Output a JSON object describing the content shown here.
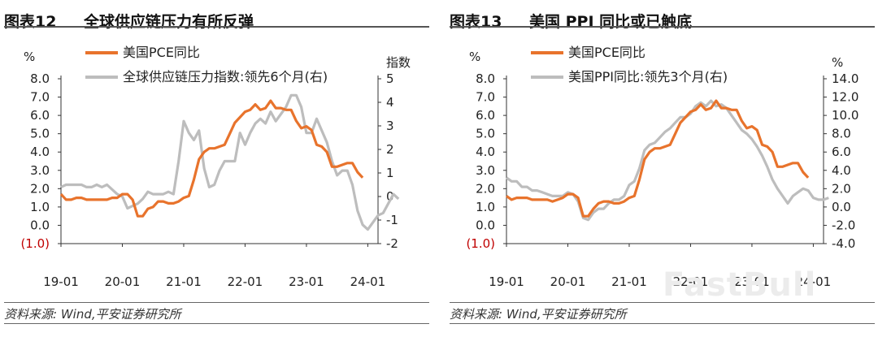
{
  "watermark": "FastBull",
  "colors": {
    "orange": "#E8732C",
    "gray": "#BDBDBD",
    "negative": "#C00000",
    "axis": "#333333"
  },
  "panels": [
    {
      "fig_num": "图表12",
      "fig_title": "全球供应链压力有所反弹",
      "source": "资料来源: Wind,平安证券研究所"
    },
    {
      "fig_num": "图表13",
      "fig_title": "美国 PPI 同比或已触底",
      "source": "资料来源: Wind,平安证券研究所"
    }
  ],
  "chart_data": [
    {
      "type": "line",
      "x_ticks": [
        "19-01",
        "20-01",
        "21-01",
        "22-01",
        "23-01",
        "24-01"
      ],
      "x_range": [
        "2019-01",
        "2024-03"
      ],
      "left_axis": {
        "unit": "%",
        "ticks": [
          "8.0",
          "7.0",
          "6.0",
          "5.0",
          "4.0",
          "3.0",
          "2.0",
          "1.0",
          "0.0",
          "(1.0)"
        ],
        "ylim": [
          -1,
          8
        ]
      },
      "right_axis": {
        "unit": "指数",
        "ticks": [
          "5",
          "4",
          "3",
          "2",
          "1",
          "0",
          "-1",
          "-2"
        ],
        "ylim": [
          -2,
          5
        ]
      },
      "legend_position": "top",
      "series": [
        {
          "name": "美国PCE同比",
          "axis": "left",
          "color": "orange",
          "values": [
            1.7,
            1.4,
            1.4,
            1.5,
            1.5,
            1.4,
            1.4,
            1.4,
            1.4,
            1.4,
            1.5,
            1.5,
            1.7,
            1.7,
            1.4,
            0.5,
            0.5,
            0.9,
            1.0,
            1.3,
            1.3,
            1.2,
            1.2,
            1.3,
            1.5,
            1.6,
            2.5,
            3.6,
            4.0,
            4.2,
            4.2,
            4.3,
            4.4,
            5.0,
            5.6,
            5.9,
            6.2,
            6.3,
            6.6,
            6.3,
            6.4,
            6.8,
            6.4,
            6.4,
            6.3,
            6.3,
            5.7,
            5.3,
            5.4,
            5.2,
            4.4,
            4.3,
            4.0,
            3.2,
            3.2,
            3.3,
            3.4,
            3.4,
            2.9,
            2.6
          ]
        },
        {
          "name": "全球供应链压力指数:领先6个月(右)",
          "axis": "right",
          "color": "gray",
          "values": [
            0.4,
            0.5,
            0.5,
            0.5,
            0.5,
            0.4,
            0.4,
            0.5,
            0.4,
            0.5,
            0.3,
            0.1,
            0.0,
            -0.5,
            -0.4,
            -0.3,
            -0.1,
            0.2,
            0.1,
            0.1,
            0.1,
            0.2,
            0.1,
            1.5,
            3.2,
            2.7,
            2.4,
            2.8,
            1.2,
            0.4,
            0.5,
            1.1,
            1.5,
            1.5,
            1.5,
            2.7,
            2.2,
            2.7,
            3.1,
            3.3,
            3.1,
            3.6,
            3.2,
            3.5,
            3.8,
            4.3,
            4.3,
            3.8,
            2.7,
            2.7,
            3.3,
            2.8,
            2.3,
            1.5,
            0.9,
            1.1,
            1.1,
            0.5,
            -0.6,
            -1.2,
            -1.4,
            -1.1,
            -0.8,
            -0.7,
            -0.3,
            0.1,
            -0.1
          ]
        }
      ]
    },
    {
      "type": "line",
      "x_ticks": [
        "19-01",
        "20-01",
        "21-01",
        "22-01",
        "23-01",
        "24-01"
      ],
      "x_range": [
        "2019-01",
        "2024-03"
      ],
      "left_axis": {
        "unit": "%",
        "ticks": [
          "8.0",
          "7.0",
          "6.0",
          "5.0",
          "4.0",
          "3.0",
          "2.0",
          "1.0",
          "0.0",
          "(1.0)"
        ],
        "ylim": [
          -1,
          8
        ]
      },
      "right_axis": {
        "unit": "%",
        "ticks": [
          "14.0",
          "12.0",
          "10.0",
          "8.0",
          "6.0",
          "4.0",
          "2.0",
          "0.0",
          "-2.0",
          "-4.0"
        ],
        "ylim": [
          -4,
          14
        ]
      },
      "legend_position": "top",
      "series": [
        {
          "name": "美国PCE同比",
          "axis": "left",
          "color": "orange",
          "values": [
            1.6,
            1.4,
            1.5,
            1.5,
            1.5,
            1.4,
            1.4,
            1.4,
            1.4,
            1.3,
            1.4,
            1.5,
            1.7,
            1.7,
            1.5,
            0.5,
            0.5,
            0.9,
            1.2,
            1.3,
            1.3,
            1.2,
            1.2,
            1.3,
            1.5,
            1.6,
            2.5,
            3.6,
            4.0,
            4.2,
            4.2,
            4.3,
            4.4,
            5.0,
            5.6,
            5.9,
            6.2,
            6.3,
            6.6,
            6.3,
            6.4,
            6.8,
            6.4,
            6.4,
            6.3,
            6.3,
            5.7,
            5.3,
            5.4,
            5.2,
            4.4,
            4.3,
            4.0,
            3.2,
            3.2,
            3.3,
            3.4,
            3.4,
            2.9,
            2.6
          ]
        },
        {
          "name": "美国PPI同比:领先3个月(右)",
          "axis": "right",
          "color": "gray",
          "values": [
            3.2,
            2.8,
            2.8,
            2.2,
            2.2,
            1.8,
            1.8,
            1.6,
            1.4,
            1.2,
            1.2,
            1.2,
            1.6,
            1.4,
            0.6,
            -1.2,
            -1.4,
            -0.6,
            -0.2,
            -0.2,
            0.4,
            0.8,
            0.8,
            1.2,
            2.4,
            2.8,
            4.2,
            6.2,
            6.8,
            7.0,
            7.6,
            8.2,
            8.6,
            9.2,
            9.8,
            9.8,
            10.2,
            11.0,
            11.4,
            11.0,
            11.6,
            11.0,
            11.2,
            10.8,
            10.0,
            9.2,
            8.4,
            8.0,
            7.4,
            6.6,
            5.6,
            4.4,
            3.0,
            2.0,
            1.2,
            0.4,
            1.2,
            1.6,
            2.0,
            1.8,
            1.0,
            0.8,
            0.8,
            1.0
          ]
        }
      ]
    }
  ]
}
